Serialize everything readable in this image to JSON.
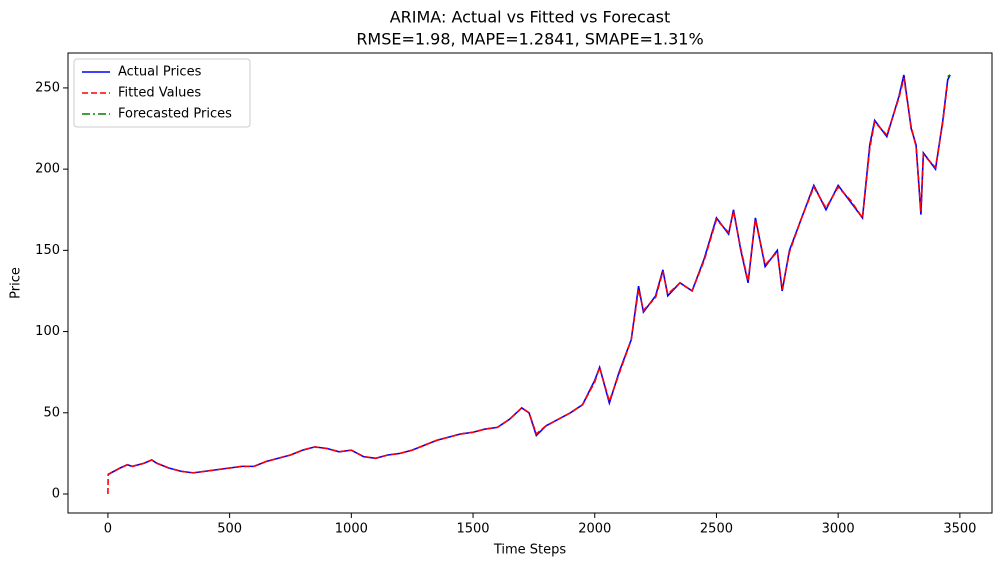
{
  "chart_data": {
    "type": "line",
    "title": "ARIMA: Actual vs Fitted vs Forecast",
    "subtitle": "RMSE=1.98, MAPE=1.2841, SMAPE=1.31%",
    "x_label": "Time Steps",
    "y_label": "Price",
    "xlim": [
      -164,
      3632
    ],
    "ylim": [
      -11.7,
      271.5
    ],
    "xticks": [
      0,
      500,
      1000,
      1500,
      2000,
      2500,
      3000,
      3500
    ],
    "yticks": [
      0,
      50,
      100,
      150,
      200,
      250
    ],
    "legend": "upper left",
    "series": [
      {
        "name": "Actual Prices",
        "color": "#0000ff",
        "linestyle": "solid",
        "x": [
          0,
          50,
          80,
          100,
          150,
          180,
          200,
          250,
          300,
          350,
          400,
          450,
          500,
          550,
          600,
          650,
          700,
          750,
          800,
          850,
          900,
          950,
          1000,
          1050,
          1100,
          1150,
          1200,
          1250,
          1300,
          1350,
          1400,
          1450,
          1500,
          1550,
          1600,
          1650,
          1700,
          1730,
          1760,
          1800,
          1850,
          1900,
          1950,
          2000,
          2020,
          2060,
          2100,
          2150,
          2180,
          2200,
          2250,
          2280,
          2300,
          2350,
          2400,
          2450,
          2500,
          2550,
          2570,
          2600,
          2630,
          2660,
          2700,
          2750,
          2770,
          2800,
          2850,
          2900,
          2950,
          3000,
          3050,
          3100,
          3130,
          3150,
          3200,
          3250,
          3270,
          3300,
          3320,
          3340,
          3350,
          3400,
          3430,
          3450,
          3460
        ],
        "values": [
          12,
          16,
          18,
          17,
          19,
          21,
          19,
          16,
          14,
          13,
          14,
          15,
          16,
          17,
          17,
          20,
          22,
          24,
          27,
          29,
          28,
          26,
          27,
          23,
          22,
          24,
          25,
          27,
          30,
          33,
          35,
          37,
          38,
          40,
          41,
          46,
          53,
          50,
          36,
          42,
          46,
          50,
          55,
          70,
          78,
          56,
          75,
          95,
          128,
          112,
          122,
          138,
          122,
          130,
          125,
          145,
          170,
          160,
          175,
          150,
          130,
          170,
          140,
          150,
          125,
          150,
          170,
          190,
          175,
          190,
          180,
          170,
          215,
          230,
          220,
          245,
          258,
          225,
          215,
          172,
          210,
          200,
          230,
          255,
          258
        ]
      },
      {
        "name": "Fitted Values",
        "color": "#ff0000",
        "linestyle": "dashed",
        "x": [
          0,
          1,
          50,
          80,
          100,
          150,
          180,
          200,
          250,
          300,
          350,
          400,
          450,
          500,
          550,
          600,
          650,
          700,
          750,
          800,
          850,
          900,
          950,
          1000,
          1050,
          1100,
          1150,
          1200,
          1250,
          1300,
          1350,
          1400,
          1450,
          1500,
          1550,
          1600,
          1650,
          1700,
          1730,
          1760,
          1800,
          1850,
          1900,
          1950,
          2000,
          2020,
          2060,
          2100,
          2150,
          2180,
          2200,
          2250,
          2280,
          2300,
          2350,
          2400,
          2450,
          2500,
          2550,
          2570,
          2600,
          2630,
          2660,
          2700,
          2750,
          2770,
          2800,
          2850,
          2900,
          2950,
          3000,
          3050,
          3100,
          3130,
          3150,
          3200,
          3250,
          3270,
          3300,
          3320,
          3340,
          3350,
          3400,
          3430,
          3450
        ],
        "values": [
          0,
          12,
          16,
          18,
          17,
          19,
          21,
          19,
          16,
          14,
          13,
          14,
          15,
          16,
          17,
          17,
          20,
          22,
          24,
          27,
          29,
          28,
          26,
          27,
          23,
          22,
          24,
          25,
          27,
          30,
          33,
          35,
          37,
          38,
          40,
          41,
          46,
          53,
          50,
          37,
          42,
          46,
          50,
          55,
          69,
          78,
          57,
          74,
          95,
          126,
          113,
          121,
          137,
          123,
          130,
          125,
          144,
          169,
          161,
          174,
          151,
          131,
          169,
          141,
          149,
          126,
          149,
          170,
          189,
          176,
          189,
          181,
          170,
          213,
          229,
          221,
          244,
          256,
          226,
          214,
          174,
          209,
          201,
          229,
          254
        ]
      },
      {
        "name": "Forecasted Prices",
        "color": "#008000",
        "linestyle": "dashdot",
        "x": [
          3450,
          3460
        ],
        "values": [
          257,
          258
        ]
      }
    ]
  }
}
